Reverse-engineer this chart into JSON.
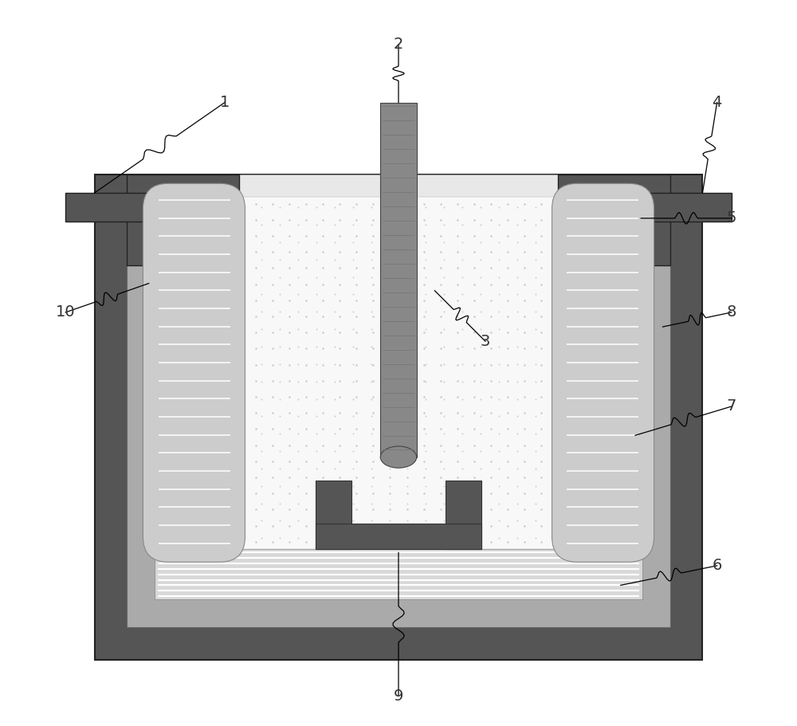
{
  "bg_color": "#ffffff",
  "c_dark": "#555555",
  "c_dark2": "#444444",
  "c_mid": "#888888",
  "c_light": "#aaaaaa",
  "c_vlight": "#cccccc",
  "c_stripe": "#d8d8d8",
  "c_white": "#ffffff",
  "c_inner": "#f0f0f0",
  "c_dot": "#b8c8b8",
  "c_dot2": "#d0b8b8",
  "figsize": [
    10.0,
    9.11
  ],
  "dpi": 100,
  "label_fs": 14,
  "label_color": "#333333"
}
